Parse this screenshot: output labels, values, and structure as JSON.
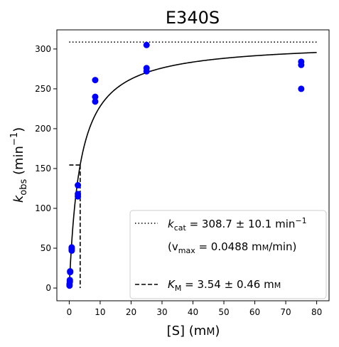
{
  "chart_data": {
    "type": "scatter",
    "title": "E340S",
    "xlabel_main": "[S] (m",
    "xlabel_unit": "M",
    "xlabel_close": ")",
    "ylabel_k": "k",
    "ylabel_sub": "obs",
    "ylabel_unit": " (min",
    "ylabel_exp": "−1",
    "ylabel_close": ")",
    "xlim": [
      -4,
      84
    ],
    "ylim": [
      -16,
      324
    ],
    "xticks": [
      0,
      10,
      20,
      30,
      40,
      50,
      60,
      70,
      80
    ],
    "yticks": [
      0,
      50,
      100,
      150,
      200,
      250,
      300
    ],
    "grid": false,
    "legend_position": "lower-right",
    "colors": {
      "points": "#0000ff",
      "fit": "#000000",
      "axes": "#000000"
    },
    "points": [
      {
        "x": 0.1,
        "y": 3
      },
      {
        "x": 0.1,
        "y": 5
      },
      {
        "x": 0.2,
        "y": 8
      },
      {
        "x": 0.2,
        "y": 10
      },
      {
        "x": 0.3,
        "y": 20
      },
      {
        "x": 0.3,
        "y": 21
      },
      {
        "x": 0.8,
        "y": 47
      },
      {
        "x": 0.8,
        "y": 49
      },
      {
        "x": 0.8,
        "y": 51
      },
      {
        "x": 2.8,
        "y": 115
      },
      {
        "x": 2.8,
        "y": 118
      },
      {
        "x": 2.8,
        "y": 129
      },
      {
        "x": 8.4,
        "y": 234
      },
      {
        "x": 8.4,
        "y": 240
      },
      {
        "x": 8.4,
        "y": 261
      },
      {
        "x": 25,
        "y": 272
      },
      {
        "x": 25,
        "y": 276
      },
      {
        "x": 25,
        "y": 305
      },
      {
        "x": 75,
        "y": 250
      },
      {
        "x": 75,
        "y": 280
      },
      {
        "x": 75,
        "y": 284
      }
    ],
    "fit": {
      "model": "Michaelis-Menten",
      "kcat": 308.7,
      "km": 3.54,
      "x_range": [
        0,
        80
      ]
    },
    "kcat_line": {
      "y": 308.7,
      "x_range": [
        0,
        80
      ]
    },
    "km_line": {
      "x": 3.54,
      "y_top": 154.35
    },
    "legend": {
      "kcat": {
        "sym": "k",
        "sub": "cat",
        "text": " = 308.7 ± 10.1 min",
        "sup": "−1"
      },
      "vmax": {
        "open": "(v",
        "sub": "max",
        "text": " = 0.0488 m",
        "small_m": "M",
        "close": "/min)"
      },
      "km": {
        "sym": "K",
        "sub": "M",
        "text": " = 3.54 ± 0.46 m",
        "small_m": "M"
      }
    }
  }
}
